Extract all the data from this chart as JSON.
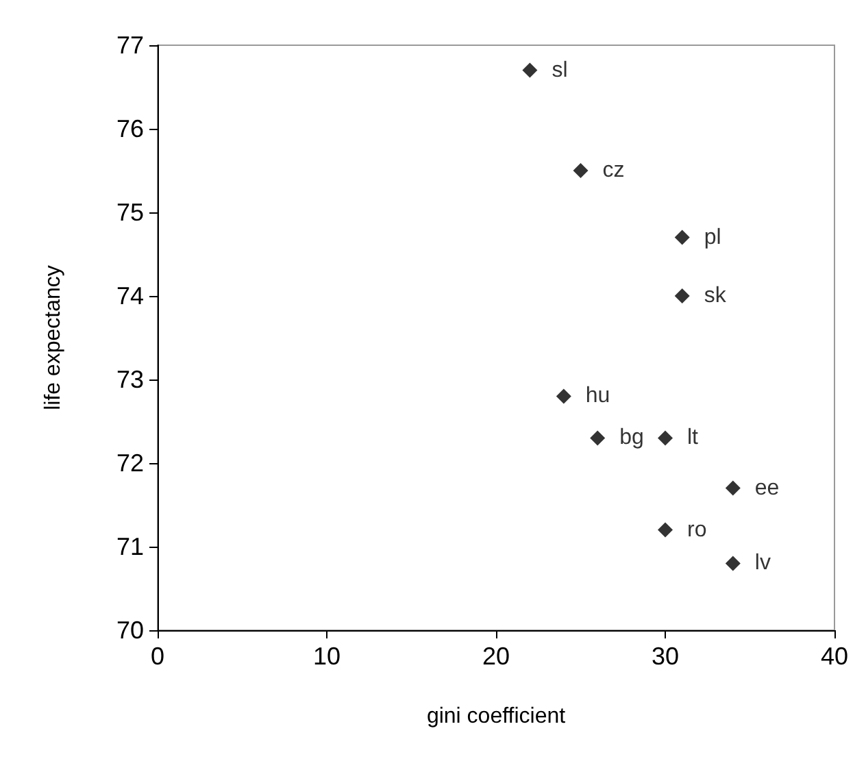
{
  "chart_data": {
    "type": "scatter",
    "xlabel": "gini coefficient",
    "ylabel": "life expectancy",
    "x": [
      22,
      25,
      31,
      31,
      24,
      26,
      30,
      34,
      30,
      34
    ],
    "series": [
      {
        "color": "#000000",
        "values": [
          76.7,
          75.5,
          74.7,
          74.0,
          72.8,
          72.3,
          72.3,
          71.7,
          71.2,
          70.8
        ]
      }
    ],
    "marker": "diamond",
    "grid": false,
    "xlim": [
      0,
      40
    ],
    "xticks": [
      0,
      10,
      20,
      30,
      40
    ],
    "ylim": [
      70,
      77
    ],
    "yticks": [
      70,
      71,
      72,
      73,
      74,
      75,
      76,
      77
    ],
    "annotations": [
      {
        "text": "sl",
        "x": 22,
        "y": 76.7
      },
      {
        "text": "cz",
        "x": 25,
        "y": 75.5
      },
      {
        "text": "pl",
        "x": 31,
        "y": 74.7
      },
      {
        "text": "sk",
        "x": 31,
        "y": 74.0
      },
      {
        "text": "hu",
        "x": 24,
        "y": 72.8
      },
      {
        "text": "bg",
        "x": 26,
        "y": 72.3
      },
      {
        "text": "lt",
        "x": 30,
        "y": 72.3
      },
      {
        "text": "ee",
        "x": 34,
        "y": 71.7
      },
      {
        "text": "ro",
        "x": 30,
        "y": 71.2
      },
      {
        "text": "lv",
        "x": 34,
        "y": 70.8
      }
    ]
  }
}
